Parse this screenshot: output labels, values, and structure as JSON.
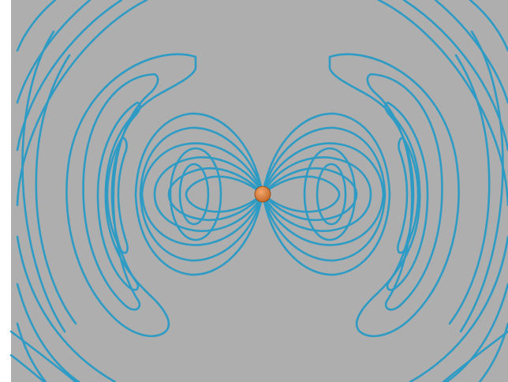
{
  "image": {
    "subject": "dipole-radiation-field-lines",
    "colors": {
      "background": "#aeaeae",
      "line": "#2e9bc4",
      "line_dark": "#1f7fa7",
      "charge": "#c56a2a",
      "charge_highlight": "#f2a66c",
      "edge": "#ffffff"
    }
  }
}
